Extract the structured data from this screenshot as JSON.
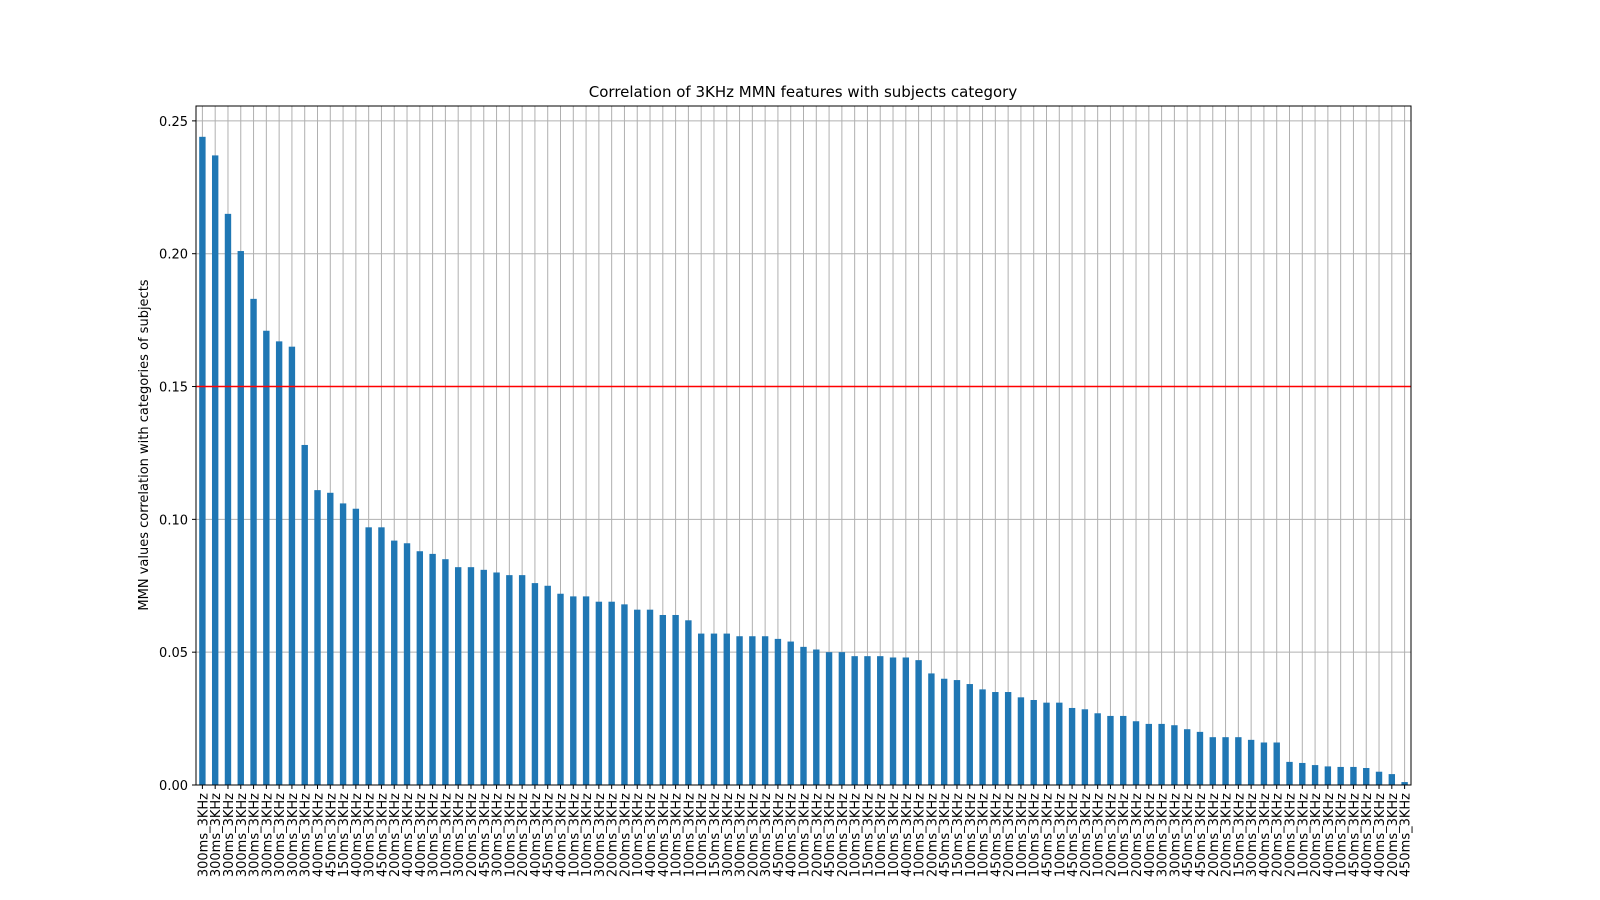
{
  "chart_data": {
    "type": "bar",
    "title": "Correlation of 3KHz MMN features with subjects category",
    "y_label": "MMN values correlation with categories of subjects",
    "categories": [
      "300ms_3KHz",
      "300ms_3KHz",
      "300ms_3KHz",
      "300ms_3KHz",
      "300ms_3KHz",
      "300ms_3KHz",
      "300ms_3KHz",
      "300ms_3KHz",
      "300ms_3KHz",
      "400ms_3KHz",
      "450ms_3KHz",
      "150ms_3KHz",
      "400ms_3KHz",
      "300ms_3KHz",
      "450ms_3KHz",
      "200ms_3KHz",
      "400ms_3KHz",
      "400ms_3KHz",
      "300ms_3KHz",
      "100ms_3KHz",
      "300ms_3KHz",
      "200ms_3KHz",
      "450ms_3KHz",
      "300ms_3KHz",
      "100ms_3KHz",
      "200ms_3KHz",
      "400ms_3KHz",
      "450ms_3KHz",
      "400ms_3KHz",
      "100ms_3KHz",
      "100ms_3KHz",
      "300ms_3KHz",
      "200ms_3KHz",
      "200ms_3KHz",
      "100ms_3KHz",
      "400ms_3KHz",
      "400ms_3KHz",
      "100ms_3KHz",
      "100ms_3KHz",
      "100ms_3KHz",
      "150ms_3KHz",
      "300ms_3KHz",
      "300ms_3KHz",
      "200ms_3KHz",
      "300ms_3KHz",
      "450ms_3KHz",
      "400ms_3KHz",
      "100ms_3KHz",
      "200ms_3KHz",
      "450ms_3KHz",
      "200ms_3KHz",
      "100ms_3KHz",
      "150ms_3KHz",
      "100ms_3KHz",
      "100ms_3KHz",
      "400ms_3KHz",
      "100ms_3KHz",
      "200ms_3KHz",
      "450ms_3KHz",
      "150ms_3KHz",
      "100ms_3KHz",
      "100ms_3KHz",
      "450ms_3KHz",
      "200ms_3KHz",
      "100ms_3KHz",
      "100ms_3KHz",
      "450ms_3KHz",
      "100ms_3KHz",
      "450ms_3KHz",
      "200ms_3KHz",
      "100ms_3KHz",
      "200ms_3KHz",
      "100ms_3KHz",
      "200ms_3KHz",
      "400ms_3KHz",
      "300ms_3KHz",
      "300ms_3KHz",
      "450ms_3KHz",
      "450ms_3KHz",
      "200ms_3KHz",
      "200ms_3KHz",
      "150ms_3KHz",
      "300ms_3KHz",
      "400ms_3KHz",
      "200ms_3KHz",
      "200ms_3KHz",
      "100ms_3KHz",
      "200ms_3KHz",
      "400ms_3KHz",
      "100ms_3KHz",
      "450ms_3KHz",
      "400ms_3KHz",
      "400ms_3KHz",
      "200ms_3KHz",
      "450ms_3KHz"
    ],
    "values": [
      0.244,
      0.237,
      0.215,
      0.201,
      0.183,
      0.171,
      0.167,
      0.165,
      0.128,
      0.111,
      0.11,
      0.106,
      0.104,
      0.097,
      0.097,
      0.092,
      0.091,
      0.088,
      0.087,
      0.085,
      0.082,
      0.082,
      0.081,
      0.08,
      0.079,
      0.079,
      0.076,
      0.075,
      0.072,
      0.071,
      0.071,
      0.069,
      0.069,
      0.068,
      0.066,
      0.066,
      0.064,
      0.064,
      0.062,
      0.057,
      0.057,
      0.057,
      0.056,
      0.056,
      0.056,
      0.055,
      0.054,
      0.052,
      0.051,
      0.05,
      0.05,
      0.0485,
      0.0485,
      0.0485,
      0.048,
      0.048,
      0.047,
      0.042,
      0.04,
      0.0395,
      0.038,
      0.036,
      0.035,
      0.035,
      0.033,
      0.032,
      0.031,
      0.031,
      0.029,
      0.0285,
      0.027,
      0.026,
      0.026,
      0.024,
      0.023,
      0.023,
      0.0225,
      0.021,
      0.02,
      0.018,
      0.018,
      0.018,
      0.017,
      0.016,
      0.016,
      0.0087,
      0.0083,
      0.0075,
      0.007,
      0.0068,
      0.0068,
      0.0064,
      0.005,
      0.0041,
      0.0011
    ],
    "color": "#1f77b4",
    "ylim": [
      0,
      0.2556
    ],
    "yticks": [
      {
        "value": 0,
        "label": "0.00"
      },
      0.05,
      {
        "value": 0.1,
        "label": "0.10"
      },
      0.15,
      {
        "value": 0.2,
        "label": "0.20"
      },
      0.25
    ],
    "grid": true,
    "hline": {
      "value": 0.15,
      "color": "red"
    }
  }
}
